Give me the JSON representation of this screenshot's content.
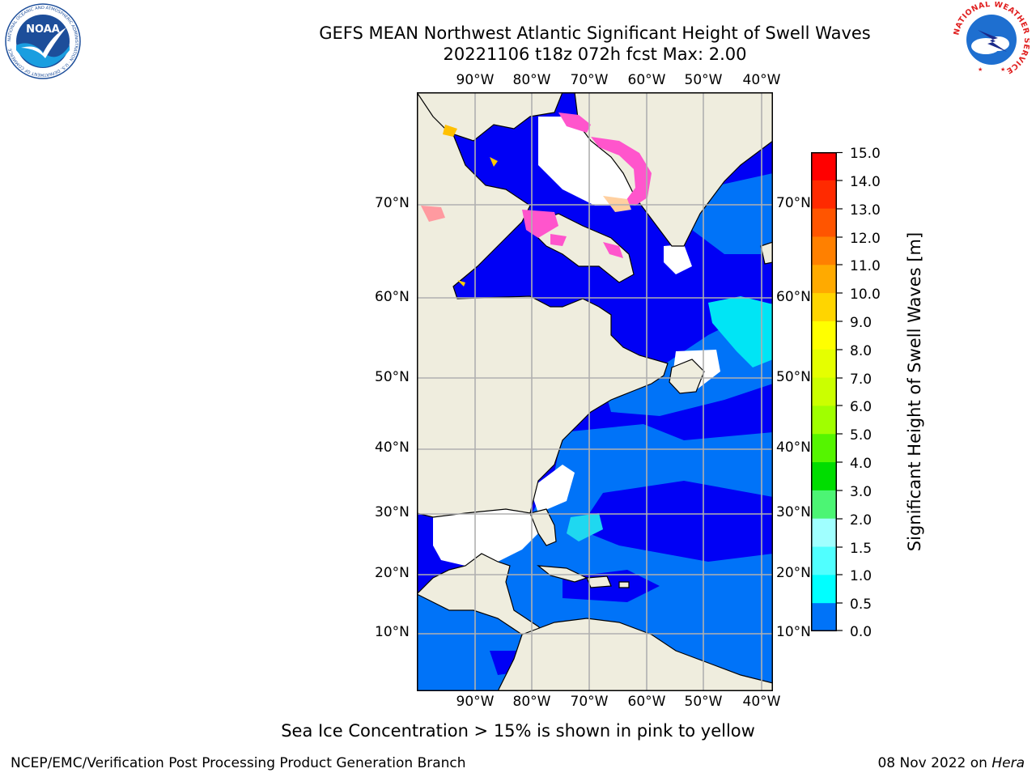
{
  "header": {
    "title_line1": "GEFS MEAN Northwest Atlantic Significant Height of Swell Waves",
    "title_line2": "20221106 t18z 072h fcst   Max: 2.00"
  },
  "map": {
    "lon_labels": [
      "90°W",
      "80°W",
      "70°W",
      "60°W",
      "50°W",
      "40°W"
    ],
    "lat_labels": [
      "70°N",
      "60°N",
      "50°N",
      "40°N",
      "30°N",
      "20°N",
      "10°N"
    ],
    "colors": {
      "land": "#efedde",
      "no_data": "#ffffff",
      "wave_0_0_5": "#0000f5",
      "wave_0_5_1": "#0073f8",
      "wave_1_1_5": "#00f5f5",
      "sea_ice": "#ff55cc"
    }
  },
  "colorbar": {
    "label": "Significant Height of Swell Waves [m]",
    "tick_labels": [
      "15.0",
      "14.0",
      "13.0",
      "12.0",
      "11.0",
      "10.0",
      "9.0",
      "8.0",
      "7.0",
      "6.0",
      "5.0",
      "4.0",
      "3.0",
      "2.0",
      "1.5",
      "1.0",
      "0.5",
      "0.0"
    ],
    "colors": [
      "#ff0000",
      "#ff2a00",
      "#ff5500",
      "#ff8000",
      "#ffaa00",
      "#ffd500",
      "#ffff00",
      "#e5ff00",
      "#cbff00",
      "#a0ff00",
      "#55f500",
      "#00dd00",
      "#4cf574",
      "#a0ffff",
      "#50ffff",
      "#00ffff",
      "#0073f8",
      "#0000f5"
    ]
  },
  "footer": {
    "note": "Sea Ice Concentration > 15% is shown in pink to yellow",
    "credit": "NCEP/EMC/Verification Post Processing Product Generation Branch",
    "date": "08 Nov 2022 on",
    "machine": "Hera"
  },
  "logos": {
    "noaa": {
      "text": "NOAA",
      "ring": "NATIONAL OCEANIC AND ATMOSPHERIC ADMINISTRATION · U.S. DEPARTMENT OF COMMERCE"
    },
    "nws": {
      "ring": "NATIONAL WEATHER SERVICE"
    }
  }
}
